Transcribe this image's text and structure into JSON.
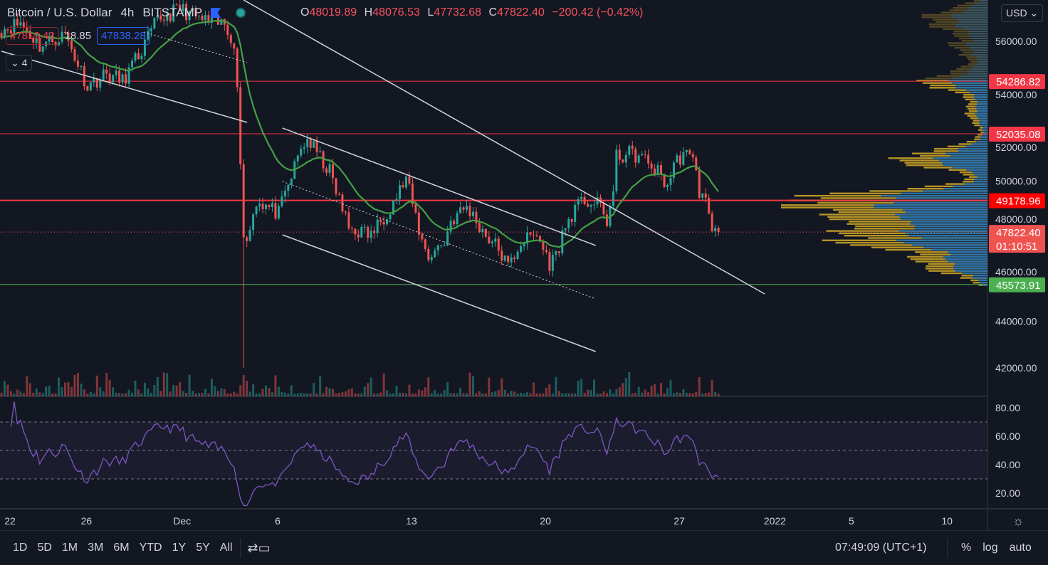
{
  "header": {
    "symbol": "Bitcoin / U.S. Dollar",
    "interval": "4h",
    "exchange": "BITSTAMP",
    "ohlc": {
      "o_label": "O",
      "o": "48019.89",
      "h_label": "H",
      "h": "48076.53",
      "l_label": "L",
      "l": "47732.68",
      "c_label": "C",
      "c": "47822.40",
      "change": "−200.42 (−0.42%)"
    }
  },
  "trade": {
    "sell": "47819.43",
    "spread": "18.85",
    "buy": "47838.28"
  },
  "indicators_collapse": {
    "label": "⌄ 4"
  },
  "currency": {
    "label": "USD ⌄"
  },
  "colors": {
    "bg": "#131722",
    "up": "#26a69a",
    "down": "#ef5350",
    "ma": "#43a047",
    "rsi": "#7e57c2",
    "hline_red": "#f23645",
    "hline_green": "#4caf50",
    "vp_up": "#c9a227",
    "vp_down": "#1e6fb8"
  },
  "chart_data": {
    "type": "candlestick",
    "title": "Bitcoin / U.S. Dollar, 4h, BITSTAMP",
    "bar_interval_hours": 4,
    "close_keypoints": [
      [
        0,
        56500
      ],
      [
        6,
        56800
      ],
      [
        12,
        55800
      ],
      [
        20,
        56300
      ],
      [
        27,
        54100
      ],
      [
        33,
        54600
      ],
      [
        38,
        54300
      ],
      [
        44,
        55600
      ],
      [
        49,
        56900
      ],
      [
        56,
        57400
      ],
      [
        63,
        56900
      ],
      [
        70,
        56700
      ],
      [
        73,
        56000
      ],
      [
        74,
        53800
      ],
      [
        75,
        51000
      ],
      [
        76,
        47700
      ],
      [
        77,
        47400
      ],
      [
        80,
        49200
      ],
      [
        87,
        48600
      ],
      [
        94,
        51400
      ],
      [
        96,
        51800
      ],
      [
        103,
        50400
      ],
      [
        109,
        48000
      ],
      [
        116,
        47700
      ],
      [
        122,
        48900
      ],
      [
        127,
        50100
      ],
      [
        132,
        47400
      ],
      [
        134,
        46800
      ],
      [
        139,
        47400
      ],
      [
        141,
        48300
      ],
      [
        146,
        48900
      ],
      [
        152,
        47700
      ],
      [
        156,
        47100
      ],
      [
        159,
        46300
      ],
      [
        163,
        47400
      ],
      [
        168,
        47700
      ],
      [
        172,
        46500
      ],
      [
        174,
        46800
      ],
      [
        176,
        47700
      ],
      [
        179,
        48600
      ],
      [
        183,
        49200
      ],
      [
        188,
        48900
      ],
      [
        190,
        48300
      ],
      [
        192,
        49500
      ],
      [
        193,
        51000
      ],
      [
        197,
        51200
      ],
      [
        201,
        51000
      ],
      [
        206,
        50400
      ],
      [
        209,
        49800
      ],
      [
        211,
        50700
      ],
      [
        214,
        51200
      ],
      [
        218,
        50700
      ],
      [
        219,
        49500
      ],
      [
        222,
        48900
      ],
      [
        223,
        47700
      ],
      [
        225,
        47822.4
      ]
    ],
    "flash_crash_low": 42000,
    "ylim": [
      40700,
      57800
    ],
    "price_ticks": [
      "56000.00",
      "54000.00",
      "52000.00",
      "50000.00",
      "48000.00",
      "46000.00",
      "44000.00",
      "42000.00"
    ],
    "price_tick_values": [
      56000,
      54000,
      52000,
      50000,
      48000,
      46000,
      44000,
      42000
    ],
    "horizontal_levels": [
      {
        "price": 54286.82,
        "label": "54286.82",
        "color": "red"
      },
      {
        "price": 52035.08,
        "label": "52035.08",
        "color": "red"
      },
      {
        "price": 49178.96,
        "label": "49178.96",
        "color": "red-strong"
      },
      {
        "price": 45573.91,
        "label": "45573.91",
        "color": "green"
      }
    ],
    "last_price": {
      "price": 47822.4,
      "label": "47822.40",
      "countdown": "01:10:51"
    },
    "trendlines": [
      {
        "from": [
          0,
          55572
        ],
        "to": [
          77.1,
          52522
        ],
        "style": "solid"
      },
      {
        "from": [
          76,
          57768
        ],
        "to": [
          239.5,
          45172
        ],
        "style": "solid"
      },
      {
        "from": [
          88.2,
          52278
        ],
        "to": [
          186.5,
          47246
        ],
        "style": "solid"
      },
      {
        "from": [
          88.2,
          47703
        ],
        "to": [
          186.5,
          42701
        ],
        "style": "solid"
      },
      {
        "from": [
          88.2,
          49991
        ],
        "to": [
          186.5,
          44958
        ],
        "style": "dotted"
      },
      {
        "from": [
          44.7,
          56396
        ],
        "to": [
          77.1,
          55085
        ],
        "style": "dotted"
      }
    ],
    "moving_average": {
      "type": "EMA",
      "period": 20
    },
    "rsi": {
      "period": 14,
      "ticks": [
        "80.00",
        "60.00",
        "40.00",
        "20.00"
      ],
      "tick_values": [
        80,
        60,
        40,
        20
      ],
      "upper_band": 70,
      "middle": 50,
      "lower_band": 30
    },
    "time_ticks": [
      {
        "label": "22",
        "day_offset": 0
      },
      {
        "label": "26",
        "day_offset": 4
      },
      {
        "label": "Dec",
        "day_offset": 9
      },
      {
        "label": "6",
        "day_offset": 14
      },
      {
        "label": "13",
        "day_offset": 21
      },
      {
        "label": "20",
        "day_offset": 28
      },
      {
        "label": "27",
        "day_offset": 35
      },
      {
        "label": "2022",
        "day_offset": 40
      },
      {
        "label": "5",
        "day_offset": 44
      },
      {
        "label": "10",
        "day_offset": 49
      }
    ],
    "volume_profile_peaks": [
      [
        57000,
        0.3
      ],
      [
        55800,
        0.15
      ],
      [
        54300,
        0.3
      ],
      [
        53000,
        0.08
      ],
      [
        51000,
        0.42
      ],
      [
        49200,
        0.97
      ],
      [
        48300,
        0.6
      ],
      [
        47500,
        0.62
      ],
      [
        46500,
        0.3
      ]
    ]
  },
  "bottom": {
    "ranges": [
      "1D",
      "5D",
      "1M",
      "3M",
      "6M",
      "YTD",
      "1Y",
      "5Y",
      "All"
    ],
    "clock": "07:49:09 (UTC+1)",
    "percent": "%",
    "log": "log",
    "auto": "auto"
  }
}
